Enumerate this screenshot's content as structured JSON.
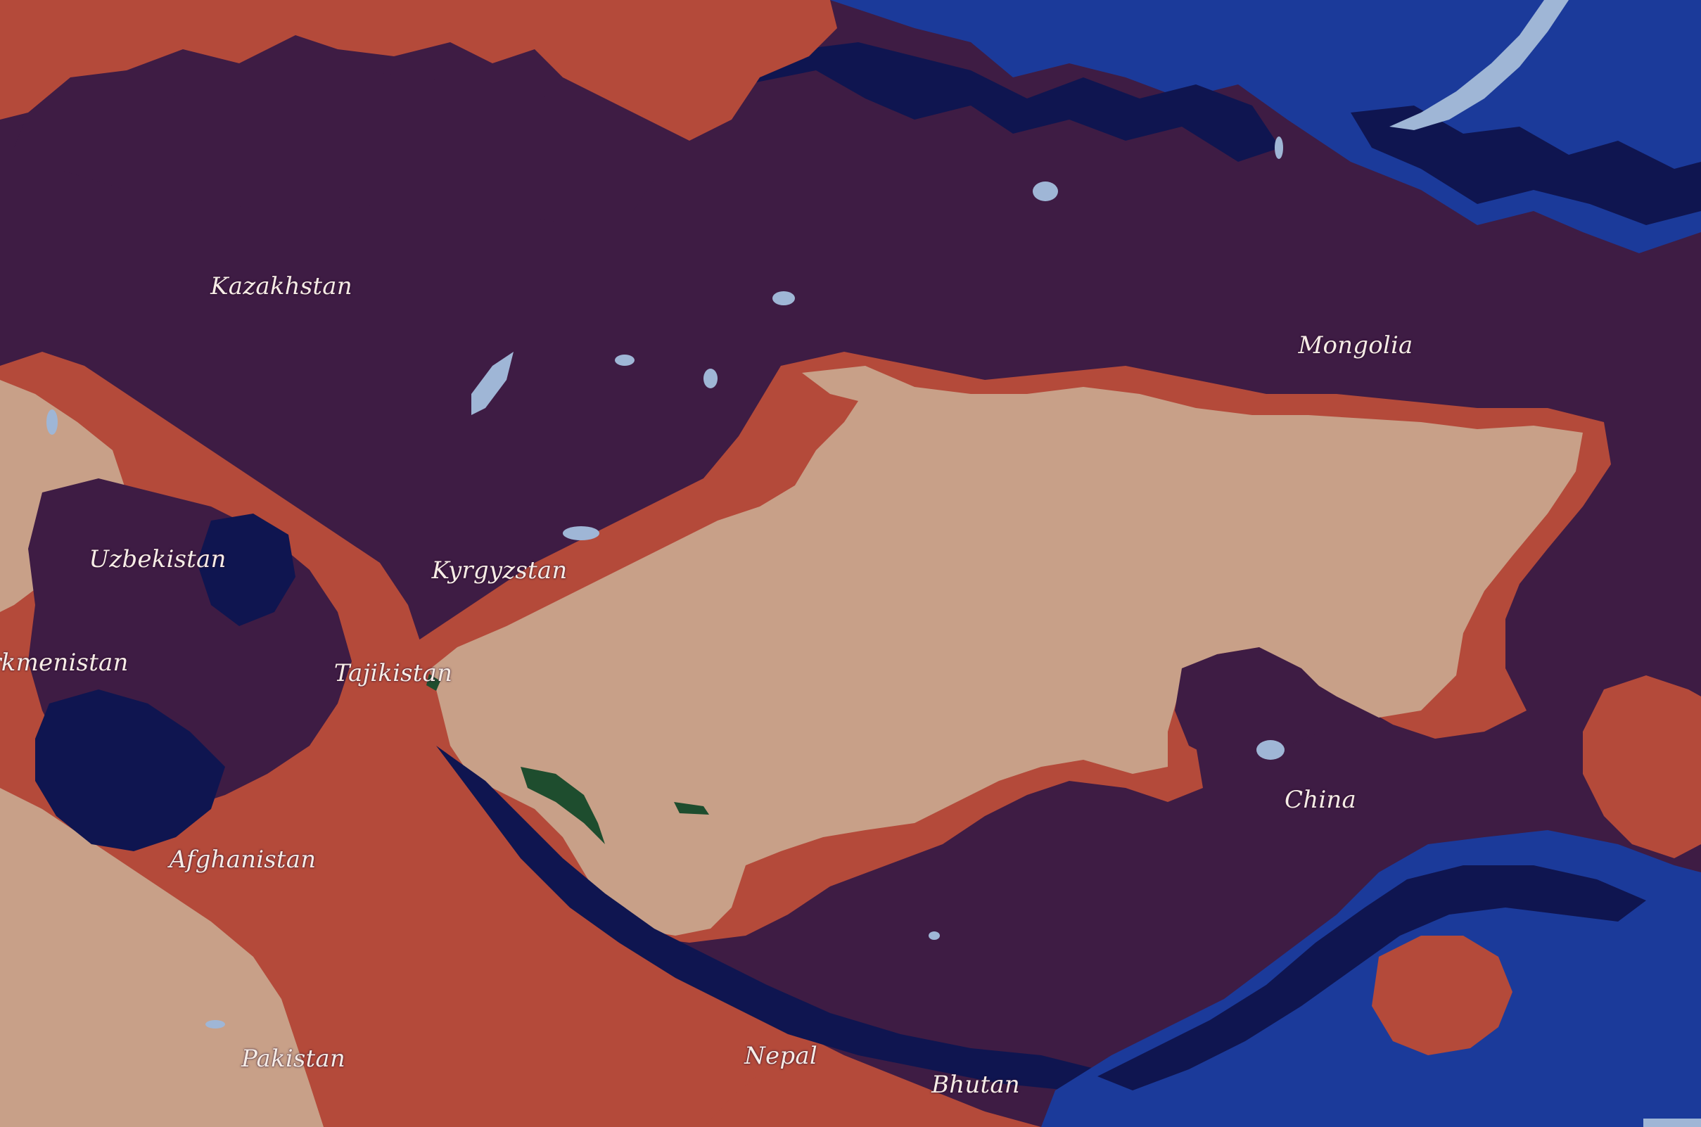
{
  "map": {
    "palette": {
      "deep_purple": "#3e1c44",
      "terracotta": "#b44a3a",
      "sand": "#c8a088",
      "navy": "#0f1550",
      "blue": "#1b3a9a",
      "water": "#9fb6d6",
      "forest": "#1e4d2e"
    },
    "labels": [
      {
        "id": "kazakhstan",
        "text": "Kazakhstan"
      },
      {
        "id": "mongolia",
        "text": "Mongolia"
      },
      {
        "id": "uzbekistan",
        "text": "Uzbekistan"
      },
      {
        "id": "kyrgyzstan",
        "text": "Kyrgyzstan"
      },
      {
        "id": "turkmenistan",
        "text": "rkmenistan"
      },
      {
        "id": "tajikistan",
        "text": "Tajikistan"
      },
      {
        "id": "afghanistan",
        "text": "Afghanistan"
      },
      {
        "id": "china",
        "text": "China"
      },
      {
        "id": "pakistan",
        "text": "Pakistan"
      },
      {
        "id": "nepal",
        "text": "Nepal"
      },
      {
        "id": "bhutan",
        "text": "Bhutan"
      }
    ]
  }
}
